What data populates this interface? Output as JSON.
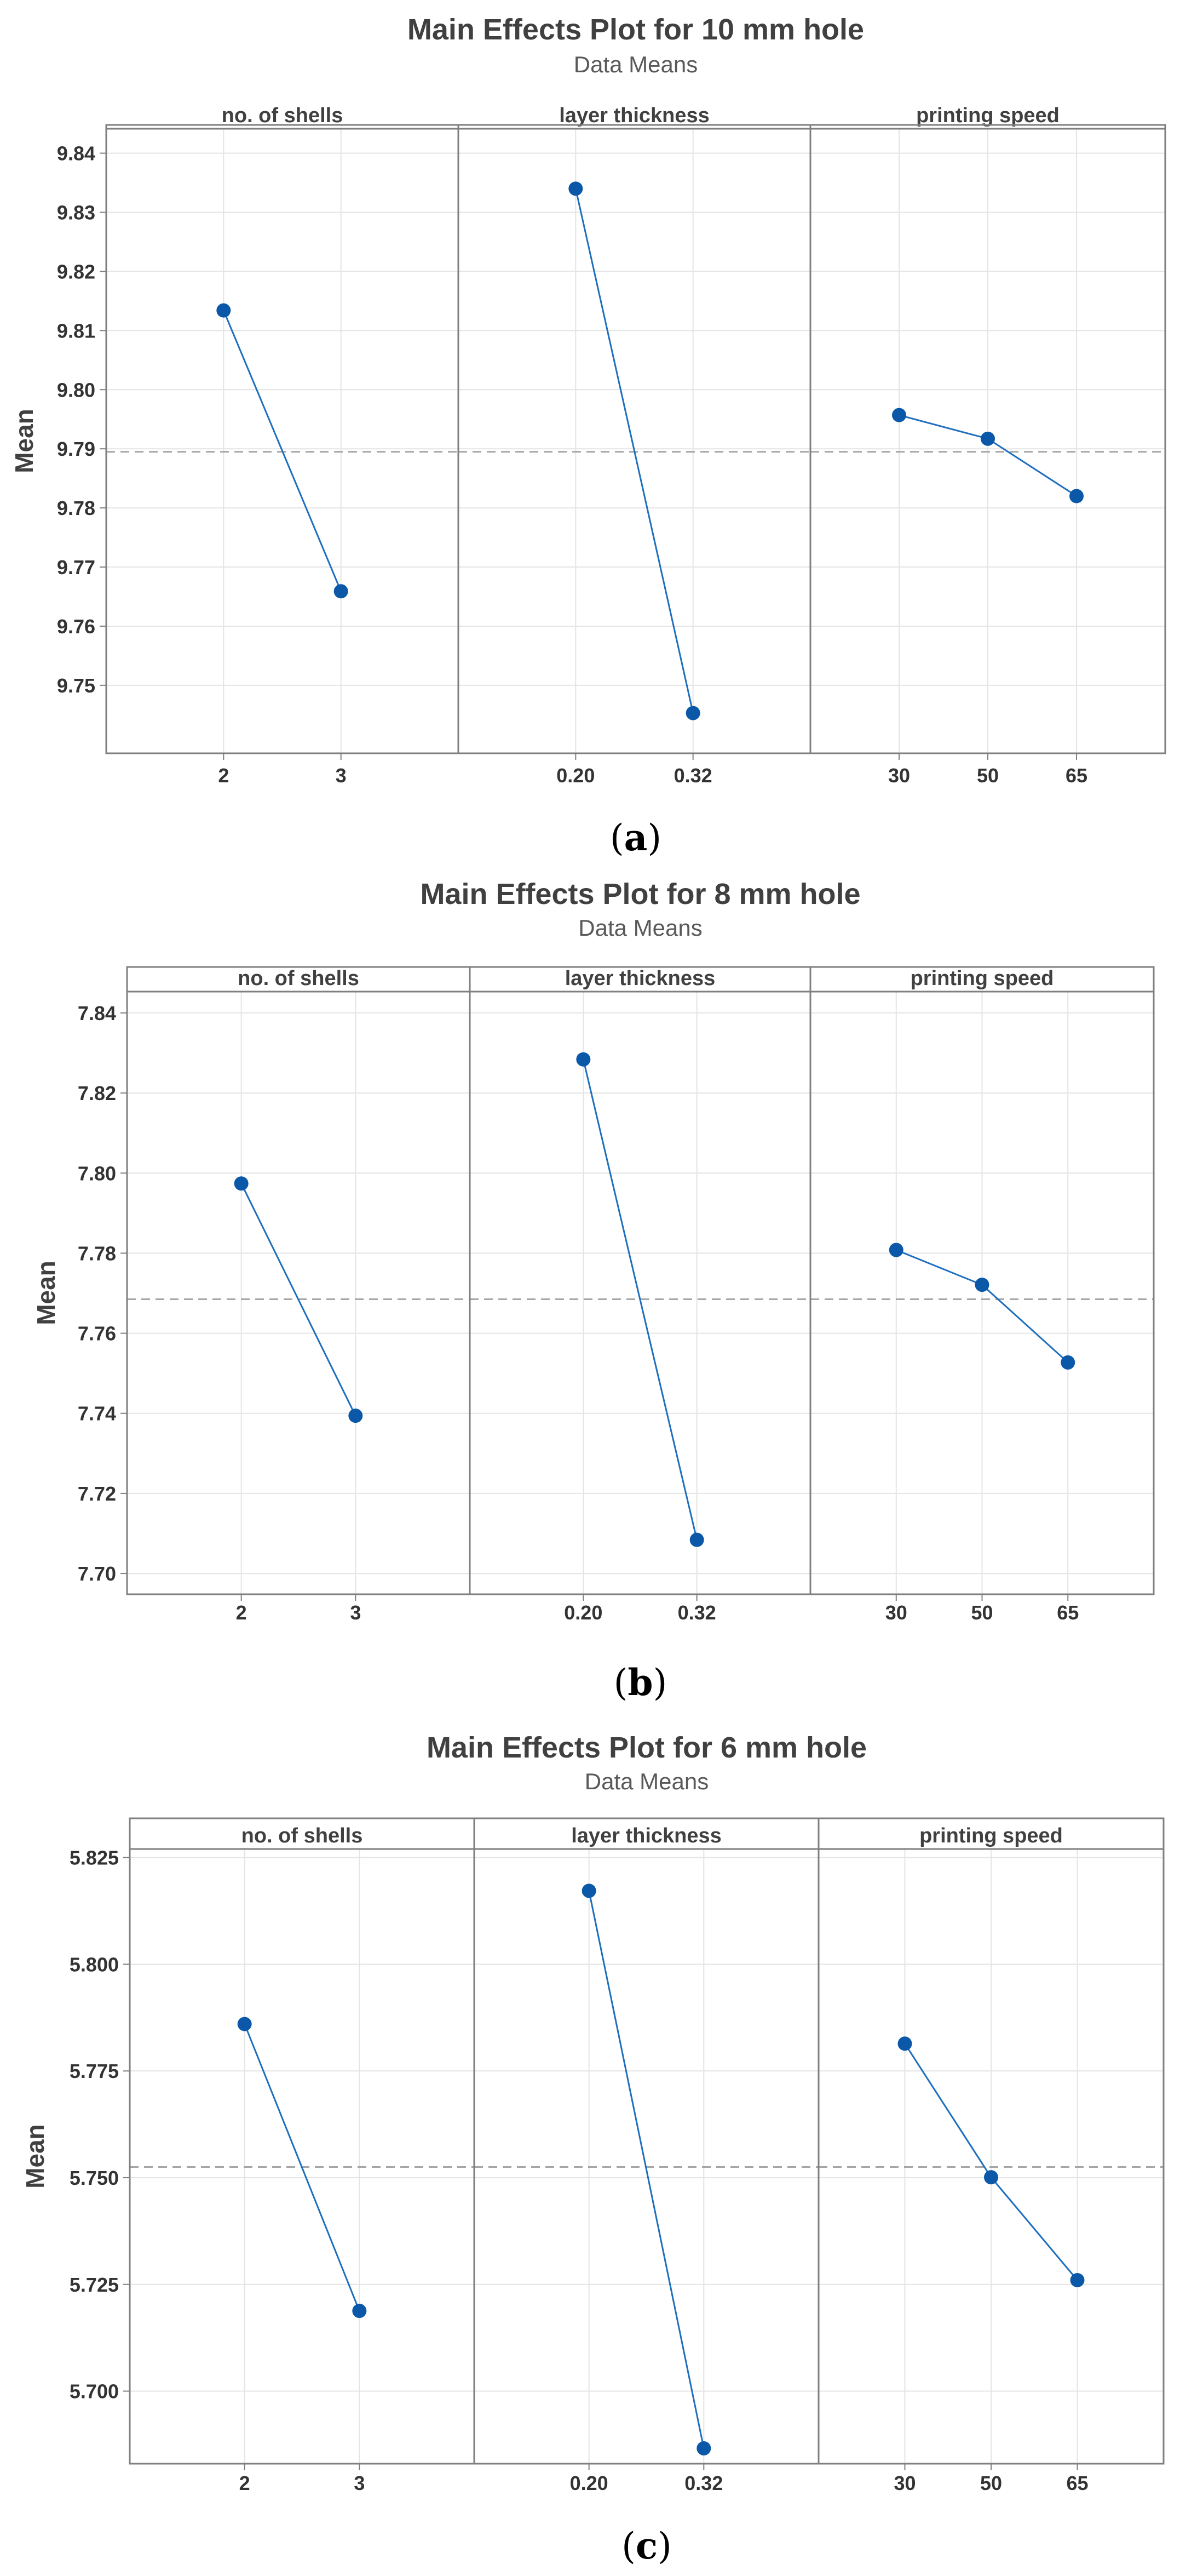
{
  "chart_data": [
    {
      "type": "line",
      "title": "Main Effects Plot for 10 mm hole",
      "subtitle": "Data Means",
      "ylabel": "Mean",
      "ylim": [
        9.741,
        9.842
      ],
      "yticks": [
        "9.75",
        "9.76",
        "9.77",
        "9.78",
        "9.79",
        "9.80",
        "9.81",
        "9.82",
        "9.83",
        "9.84"
      ],
      "grand_mean": 9.7895,
      "caption": {
        "open": "(",
        "letter": "a",
        "close": ")"
      },
      "panels": [
        {
          "label": "no. of shells",
          "categories": [
            "2",
            "3"
          ],
          "values": [
            9.8134,
            9.7659
          ]
        },
        {
          "label": "layer thickness",
          "categories": [
            "0.20",
            "0.32"
          ],
          "values": [
            9.834,
            9.7453
          ]
        },
        {
          "label": "printing speed",
          "categories": [
            "30",
            "50",
            "65"
          ],
          "values": [
            9.7957,
            9.7917,
            9.782
          ]
        }
      ]
    },
    {
      "type": "line",
      "title": "Main Effects Plot for 8 mm hole",
      "subtitle": "Data Means",
      "ylabel": "Mean",
      "ylim": [
        7.697,
        7.843
      ],
      "yticks": [
        "7.70",
        "7.72",
        "7.74",
        "7.76",
        "7.78",
        "7.80",
        "7.82",
        "7.84"
      ],
      "grand_mean": 7.7685,
      "caption": {
        "open": "(",
        "letter": "b",
        "close": ")"
      },
      "panels": [
        {
          "label": "no. of shells",
          "categories": [
            "2",
            "3"
          ],
          "values": [
            7.7974,
            7.7394
          ]
        },
        {
          "label": "layer thickness",
          "categories": [
            "0.20",
            "0.32"
          ],
          "values": [
            7.8284,
            7.7084
          ]
        },
        {
          "label": "printing speed",
          "categories": [
            "30",
            "50",
            "65"
          ],
          "values": [
            7.7808,
            7.7721,
            7.7527
          ]
        }
      ]
    },
    {
      "type": "line",
      "title": "Main Effects Plot for 6 mm hole",
      "subtitle": "Data Means",
      "ylabel": "Mean",
      "ylim": [
        5.683,
        5.827
      ],
      "yticks": [
        "5.700",
        "5.725",
        "5.750",
        "5.775",
        "5.800",
        "5.825"
      ],
      "grand_mean": 5.7525,
      "caption": {
        "open": "(",
        "letter": "c",
        "close": ")"
      },
      "panels": [
        {
          "label": "no. of shells",
          "categories": [
            "2",
            "3"
          ],
          "values": [
            5.786,
            5.7188
          ]
        },
        {
          "label": "layer thickness",
          "categories": [
            "0.20",
            "0.32"
          ],
          "values": [
            5.8172,
            5.6866
          ]
        },
        {
          "label": "printing speed",
          "categories": [
            "30",
            "50",
            "65"
          ],
          "values": [
            5.7814,
            5.7501,
            5.726
          ]
        }
      ]
    }
  ],
  "colors": {
    "series": "#1f6fbf",
    "marker": "#0b58a8",
    "mean_line": "#a6a6a6",
    "grid": "#e4e4e4",
    "frame": "#7f7f7f"
  }
}
